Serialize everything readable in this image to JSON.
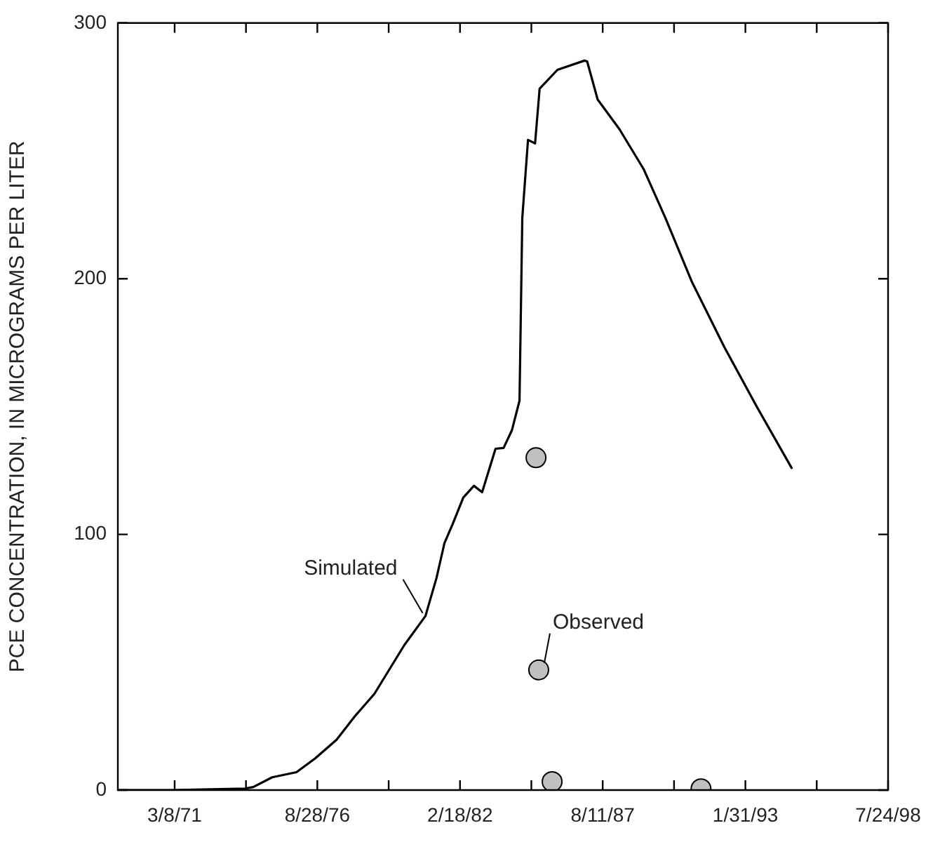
{
  "chart_data": {
    "type": "line",
    "ylabel": "PCE CONCENTRATION, IN MICROGRAMS PER LITER",
    "xlim": [
      "1969-01-01",
      "1998-07-24"
    ],
    "xticks": [
      {
        "value": "1971-03-08",
        "label": "3/8/71"
      },
      {
        "value": "1973-12-02",
        "label": null
      },
      {
        "value": "1976-08-28",
        "label": "8/28/76"
      },
      {
        "value": "1979-05-25",
        "label": null
      },
      {
        "value": "1982-02-18",
        "label": "2/18/82"
      },
      {
        "value": "1984-11-14",
        "label": null
      },
      {
        "value": "1987-08-11",
        "label": "8/11/87"
      },
      {
        "value": "1990-05-07",
        "label": null
      },
      {
        "value": "1993-01-31",
        "label": "1/31/93"
      },
      {
        "value": "1995-10-28",
        "label": null
      },
      {
        "value": "1998-07-24",
        "label": "7/24/98"
      }
    ],
    "ylim": [
      0,
      300
    ],
    "yticks": [
      0,
      100,
      200,
      300
    ],
    "grid": false,
    "legend": false,
    "series": [
      {
        "color": "#000000",
        "marker": "none",
        "line_style": "solid",
        "x": [
          "1969-01-01",
          "1971-03-01",
          "1973-11-20",
          "1974-03-15",
          "1974-12-05",
          "1975-11-10",
          "1976-07-30",
          "1977-05-25",
          "1978-02-15",
          "1978-11-05",
          "1979-12-28",
          "1980-10-22",
          "1981-03-25",
          "1981-07-15",
          "1981-11-05",
          "1982-04-05",
          "1982-09-01",
          "1982-12-25",
          "1983-07-01",
          "1983-10-22",
          "1984-02-15",
          "1984-06-01",
          "1984-07-10",
          "1984-09-28",
          "1985-01-05",
          "1985-03-10",
          "1985-11-15",
          "1986-11-28",
          "1987-01-05",
          "1987-06-01",
          "1988-04-01",
          "1989-03-08",
          "1990-01-05",
          "1991-01-15",
          "1992-04-10",
          "1993-07-05",
          "1994-11-10"
        ],
        "values": [
          0,
          0,
          0.6,
          1.2,
          5,
          7,
          12.4,
          19.7,
          29.2,
          37.6,
          56.6,
          68.1,
          82.9,
          96.6,
          103.9,
          114.4,
          119,
          116.5,
          133.5,
          133.8,
          140.7,
          152.3,
          223.8,
          254.3,
          252.9,
          274.3,
          281.7,
          285.3,
          285,
          270.1,
          258.5,
          242.8,
          223.8,
          198.6,
          173.3,
          150.2,
          126
        ]
      },
      {
        "type": "scatter",
        "color": "#c0c0c0",
        "marker": "circle",
        "x": [
          "1985-01-18",
          "1985-02-25",
          "1985-09-01",
          "1991-05-20"
        ],
        "values": [
          130,
          47,
          3.3,
          0.5
        ]
      }
    ],
    "annotations": [
      {
        "text": "Simulated",
        "x": "1980-10-22",
        "y": 68.1
      },
      {
        "text": "Observed",
        "x": "1985-02-25",
        "y": 47
      }
    ]
  }
}
